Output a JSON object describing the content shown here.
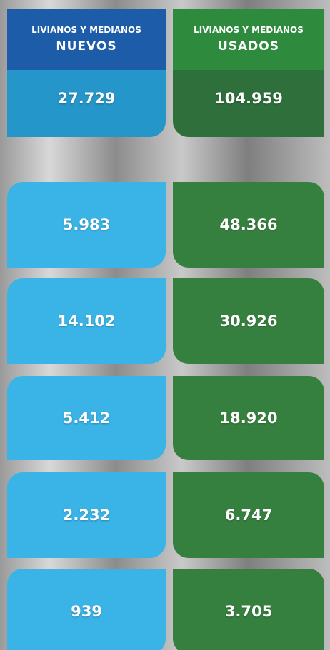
{
  "columns": [
    {
      "header_top": "LIVIANOS Y MEDIANOS",
      "header": "NUEVOS",
      "total": "27.729",
      "values": [
        "5.983",
        "14.102",
        "5.412",
        "2.232",
        "939"
      ]
    },
    {
      "header_top": "LIVIANOS Y MEDIANOS",
      "header": "USADOS",
      "total": "104.959",
      "values": [
        "48.366",
        "30.926",
        "18.920",
        "6.747",
        "3.705"
      ]
    }
  ]
}
